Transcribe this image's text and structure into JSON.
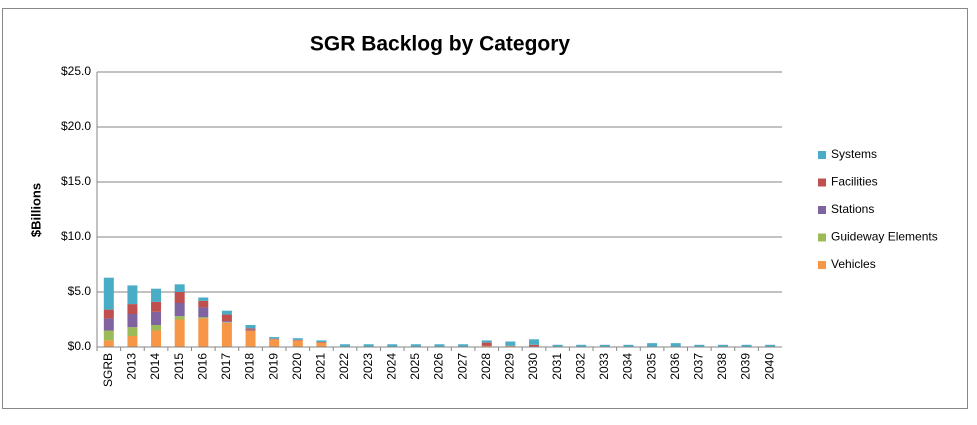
{
  "chart_data": {
    "type": "stacked_bar",
    "title": "SGR Backlog by Category",
    "y_label": "$Billions",
    "categories": [
      "SGRB",
      "2013",
      "2014",
      "2015",
      "2016",
      "2017",
      "2018",
      "2019",
      "2020",
      "2021",
      "2022",
      "2023",
      "2024",
      "2025",
      "2026",
      "2027",
      "2028",
      "2029",
      "2030",
      "2031",
      "2032",
      "2033",
      "2034",
      "2035",
      "2036",
      "2037",
      "2038",
      "2039",
      "2040"
    ],
    "series": [
      {
        "name": "Vehicles",
        "color": "#f79646",
        "values": [
          0.6,
          1.0,
          1.5,
          2.5,
          2.6,
          2.2,
          1.5,
          0.7,
          0.6,
          0.4,
          0,
          0,
          0,
          0,
          0,
          0,
          0.1,
          0.1,
          0,
          0,
          0,
          0,
          0,
          0,
          0,
          0,
          0,
          0,
          0
        ]
      },
      {
        "name": "Guideway Elements",
        "color": "#9bbb59",
        "values": [
          0.9,
          0.8,
          0.5,
          0.3,
          0.1,
          0.05,
          0,
          0,
          0,
          0,
          0,
          0,
          0,
          0,
          0,
          0,
          0,
          0,
          0,
          0,
          0,
          0,
          0,
          0,
          0,
          0,
          0,
          0,
          0
        ]
      },
      {
        "name": "Stations",
        "color": "#8064a2",
        "values": [
          1.1,
          1.2,
          1.2,
          1.2,
          0.9,
          0.1,
          0.1,
          0,
          0,
          0,
          0,
          0,
          0,
          0,
          0,
          0,
          0,
          0,
          0,
          0,
          0,
          0,
          0,
          0,
          0,
          0,
          0,
          0,
          0
        ]
      },
      {
        "name": "Facilities",
        "color": "#c0504d",
        "values": [
          0.8,
          0.9,
          0.9,
          1.0,
          0.6,
          0.6,
          0.1,
          0.05,
          0.05,
          0.05,
          0,
          0,
          0,
          0,
          0,
          0,
          0.3,
          0,
          0.2,
          0,
          0,
          0,
          0,
          0,
          0,
          0,
          0,
          0,
          0
        ]
      },
      {
        "name": "Systems",
        "color": "#4bacc6",
        "values": [
          2.9,
          1.7,
          1.2,
          0.7,
          0.3,
          0.35,
          0.3,
          0.15,
          0.15,
          0.15,
          0.25,
          0.25,
          0.25,
          0.25,
          0.25,
          0.25,
          0.2,
          0.4,
          0.5,
          0.2,
          0.2,
          0.2,
          0.2,
          0.35,
          0.35,
          0.2,
          0.2,
          0.2,
          0.2
        ]
      }
    ],
    "ylim": [
      0,
      25
    ],
    "yticks": [
      {
        "value": 0,
        "label": "$0.0"
      },
      {
        "value": 5,
        "label": "$5.0"
      },
      {
        "value": 10,
        "label": "$10.0"
      },
      {
        "value": 15,
        "label": "$15.0"
      },
      {
        "value": 20,
        "label": "$20.0"
      },
      {
        "value": 25,
        "label": "$25.0"
      }
    ],
    "grid": true,
    "legend": "right"
  }
}
